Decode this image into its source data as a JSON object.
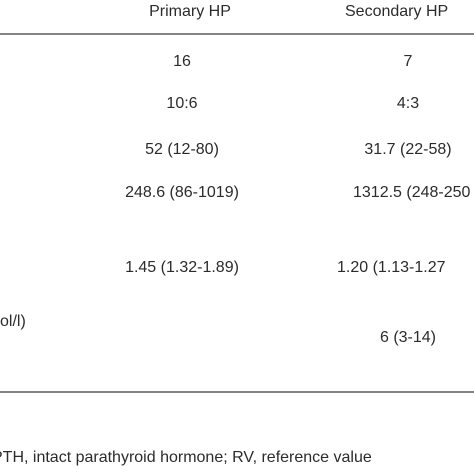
{
  "table": {
    "header": [
      "Primary HP",
      "Secondary HP"
    ],
    "rows": [
      {
        "primary": "16",
        "secondary": "7"
      },
      {
        "primary": "10:6",
        "secondary": "4:3"
      },
      {
        "primary": "52 (12-80)",
        "secondary": "31.7 (22-58)"
      },
      {
        "primary": "248.6 (86-1019)",
        "secondary": "1312.5 (248-250"
      },
      {
        "primary": "1.45 (1.32-1.89)",
        "secondary": "1.20 (1.13-1.27"
      },
      {
        "label": "ol/l)"
      },
      {
        "secondary": "6 (3-14)"
      }
    ],
    "footnote": "PTH, intact parathyroid hormone; RV, reference value"
  }
}
